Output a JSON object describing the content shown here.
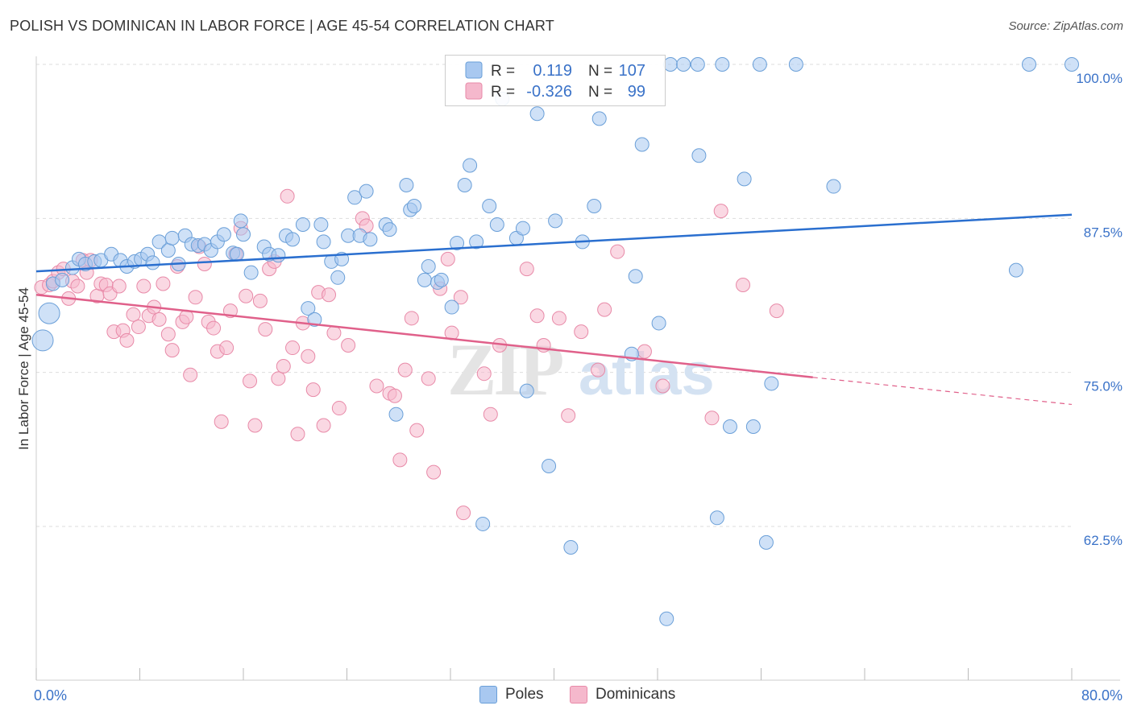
{
  "title": "POLISH VS DOMINICAN IN LABOR FORCE | AGE 45-54 CORRELATION CHART",
  "source": "Source: ZipAtlas.com",
  "chart_data": {
    "type": "scatter",
    "ylabel": "In Labor Force | Age 45-54",
    "xlim": [
      0,
      80
    ],
    "ylim": [
      50,
      101
    ],
    "x_tick_labels": {
      "left": "0.0%",
      "right": "80.0%"
    },
    "y_ticks": [
      {
        "value": 100,
        "label": "100.0%"
      },
      {
        "value": 87.5,
        "label": "87.5%"
      },
      {
        "value": 75,
        "label": "75.0%"
      },
      {
        "value": 62.5,
        "label": "62.5%"
      }
    ],
    "grid": "horizontal dashed",
    "legend_position": "top-center",
    "colors": {
      "poles_fill": "#a8c8f0",
      "poles_stroke": "#6a9fd8",
      "poles_line": "#2a6fcf",
      "dominicans_fill": "#f5b8cc",
      "dominicans_stroke": "#e88aa8",
      "dominicans_line": "#e0608a",
      "tick_label": "#3a72c8"
    },
    "legend": [
      {
        "r_label": "R =",
        "r_value": "0.119",
        "n_label": "N =",
        "n_value": "107"
      },
      {
        "r_label": "R =",
        "r_value": "-0.326",
        "n_label": "N =",
        "n_value": "99"
      }
    ],
    "series": [
      {
        "name": "Poles",
        "trend": {
          "x0": 0,
          "y0": 83.2,
          "x1": 80,
          "y1": 87.8
        },
        "points": [
          [
            0.5,
            77.6
          ],
          [
            1,
            79.8
          ],
          [
            1.3,
            82.2
          ],
          [
            2,
            82.5
          ],
          [
            2.8,
            83.5
          ],
          [
            3.3,
            84.2
          ],
          [
            3.8,
            83.8
          ],
          [
            4.5,
            84.0
          ],
          [
            5,
            84.1
          ],
          [
            5.8,
            84.6
          ],
          [
            6.5,
            84.1
          ],
          [
            7,
            83.6
          ],
          [
            7.6,
            84.0
          ],
          [
            8.1,
            84.2
          ],
          [
            8.6,
            84.6
          ],
          [
            9,
            83.9
          ],
          [
            9.5,
            85.6
          ],
          [
            10.2,
            84.9
          ],
          [
            10.5,
            85.9
          ],
          [
            11,
            83.8
          ],
          [
            11.5,
            86.1
          ],
          [
            12,
            85.4
          ],
          [
            12.5,
            85.3
          ],
          [
            13,
            85.4
          ],
          [
            13.5,
            84.9
          ],
          [
            14,
            85.6
          ],
          [
            14.5,
            86.2
          ],
          [
            15.2,
            84.7
          ],
          [
            15.5,
            84.6
          ],
          [
            15.8,
            87.3
          ],
          [
            16,
            86.2
          ],
          [
            16.6,
            83.1
          ],
          [
            17.6,
            85.2
          ],
          [
            18,
            84.6
          ],
          [
            18.7,
            84.5
          ],
          [
            19.3,
            86.1
          ],
          [
            19.8,
            85.8
          ],
          [
            20.6,
            87.0
          ],
          [
            21,
            80.2
          ],
          [
            21.5,
            79.3
          ],
          [
            22,
            87.0
          ],
          [
            22.2,
            85.6
          ],
          [
            22.8,
            84.0
          ],
          [
            23.3,
            82.7
          ],
          [
            23.6,
            84.2
          ],
          [
            24.1,
            86.1
          ],
          [
            24.6,
            89.2
          ],
          [
            25,
            86.1
          ],
          [
            25.5,
            89.7
          ],
          [
            25.8,
            85.8
          ],
          [
            27,
            87.0
          ],
          [
            27.3,
            86.6
          ],
          [
            27.8,
            71.6
          ],
          [
            28.6,
            90.2
          ],
          [
            28.9,
            88.2
          ],
          [
            29.2,
            88.5
          ],
          [
            30,
            82.5
          ],
          [
            30.3,
            83.6
          ],
          [
            31,
            82.3
          ],
          [
            31.3,
            82.5
          ],
          [
            32.1,
            80.3
          ],
          [
            32.5,
            85.5
          ],
          [
            33.1,
            90.2
          ],
          [
            33.5,
            91.8
          ],
          [
            34.0,
            85.6
          ],
          [
            34.5,
            62.7
          ],
          [
            35,
            88.5
          ],
          [
            35.6,
            87.0
          ],
          [
            36,
            97.2
          ],
          [
            37.1,
            85.9
          ],
          [
            37.6,
            86.7
          ],
          [
            37.9,
            73.5
          ],
          [
            38.7,
            96.0
          ],
          [
            39.6,
            67.4
          ],
          [
            40.1,
            87.3
          ],
          [
            41.3,
            60.8
          ],
          [
            42.2,
            85.6
          ],
          [
            43.1,
            88.5
          ],
          [
            43.5,
            95.6
          ],
          [
            46,
            76.5
          ],
          [
            46.3,
            82.8
          ],
          [
            46.8,
            93.5
          ],
          [
            48.1,
            79.0
          ],
          [
            48.7,
            55.0
          ],
          [
            49,
            100
          ],
          [
            50,
            100
          ],
          [
            51.1,
            100
          ],
          [
            51.2,
            92.6
          ],
          [
            52.6,
            63.2
          ],
          [
            53,
            100
          ],
          [
            53.6,
            70.6
          ],
          [
            54.7,
            90.7
          ],
          [
            55.4,
            70.6
          ],
          [
            55.9,
            100
          ],
          [
            56.4,
            61.2
          ],
          [
            56.8,
            74.1
          ],
          [
            58.7,
            100
          ],
          [
            61.6,
            90.1
          ],
          [
            75.7,
            83.3
          ],
          [
            76.7,
            100
          ],
          [
            80,
            100
          ]
        ]
      },
      {
        "name": "Dominicans",
        "trend": {
          "x0": 0,
          "y0": 81.3,
          "x1": 60,
          "y1": 74.6
        },
        "dashed_extension": {
          "x0": 60,
          "y0": 74.6,
          "x1": 80,
          "y1": 72.4
        },
        "points": [
          [
            0.4,
            81.9
          ],
          [
            1,
            82.1
          ],
          [
            1.3,
            82.4
          ],
          [
            1.7,
            83.1
          ],
          [
            2.1,
            83.4
          ],
          [
            2.5,
            81.0
          ],
          [
            2.8,
            82.4
          ],
          [
            3.2,
            82.0
          ],
          [
            3.6,
            84.1
          ],
          [
            3.9,
            83.1
          ],
          [
            4.2,
            84.1
          ],
          [
            4.7,
            81.2
          ],
          [
            5,
            82.2
          ],
          [
            5.4,
            82.1
          ],
          [
            5.7,
            81.4
          ],
          [
            6,
            78.3
          ],
          [
            6.4,
            82.0
          ],
          [
            6.7,
            78.4
          ],
          [
            7,
            77.6
          ],
          [
            7.5,
            79.7
          ],
          [
            7.9,
            78.7
          ],
          [
            8.3,
            82.0
          ],
          [
            8.7,
            79.6
          ],
          [
            9.1,
            80.3
          ],
          [
            9.5,
            79.3
          ],
          [
            9.8,
            82.2
          ],
          [
            10.2,
            78.1
          ],
          [
            10.5,
            76.8
          ],
          [
            10.9,
            83.6
          ],
          [
            11.3,
            79.1
          ],
          [
            11.6,
            79.5
          ],
          [
            11.9,
            74.8
          ],
          [
            12.3,
            81.1
          ],
          [
            12.6,
            85.2
          ],
          [
            13,
            83.8
          ],
          [
            13.3,
            79.1
          ],
          [
            13.7,
            78.6
          ],
          [
            14,
            76.7
          ],
          [
            14.3,
            71.0
          ],
          [
            14.7,
            77.0
          ],
          [
            15,
            80.0
          ],
          [
            15.4,
            84.6
          ],
          [
            15.8,
            86.7
          ],
          [
            16.2,
            81.2
          ],
          [
            16.5,
            74.3
          ],
          [
            16.9,
            70.7
          ],
          [
            17.3,
            80.8
          ],
          [
            17.7,
            78.5
          ],
          [
            18,
            83.4
          ],
          [
            18.4,
            84.0
          ],
          [
            18.7,
            74.5
          ],
          [
            19.1,
            75.5
          ],
          [
            19.4,
            89.3
          ],
          [
            19.8,
            77.0
          ],
          [
            20.2,
            70.0
          ],
          [
            20.6,
            79.0
          ],
          [
            21,
            76.3
          ],
          [
            21.4,
            73.6
          ],
          [
            21.8,
            81.5
          ],
          [
            22.2,
            70.7
          ],
          [
            22.6,
            81.3
          ],
          [
            23,
            78.2
          ],
          [
            23.4,
            72.1
          ],
          [
            24.1,
            77.2
          ],
          [
            25.2,
            87.5
          ],
          [
            25.5,
            86.9
          ],
          [
            26.3,
            73.9
          ],
          [
            27.3,
            73.3
          ],
          [
            27.7,
            73.1
          ],
          [
            28.1,
            67.9
          ],
          [
            28.5,
            75.2
          ],
          [
            29,
            79.4
          ],
          [
            29.4,
            70.3
          ],
          [
            30.3,
            74.5
          ],
          [
            30.7,
            66.9
          ],
          [
            31.2,
            81.8
          ],
          [
            31.8,
            84.2
          ],
          [
            32.1,
            78.2
          ],
          [
            32.8,
            81.1
          ],
          [
            33,
            63.6
          ],
          [
            34.6,
            74.9
          ],
          [
            35.1,
            71.6
          ],
          [
            35.8,
            77.2
          ],
          [
            37.9,
            83.4
          ],
          [
            38.7,
            79.6
          ],
          [
            39.2,
            77.2
          ],
          [
            40.4,
            79.4
          ],
          [
            41.1,
            71.5
          ],
          [
            42.1,
            78.3
          ],
          [
            43.4,
            75.2
          ],
          [
            43.9,
            80.1
          ],
          [
            44.9,
            84.8
          ],
          [
            47,
            76.7
          ],
          [
            48.4,
            73.9
          ],
          [
            52.2,
            71.3
          ],
          [
            52.9,
            88.1
          ],
          [
            54.6,
            82.1
          ],
          [
            57.2,
            80.0
          ]
        ]
      }
    ]
  },
  "bottom_legend": [
    {
      "label": "Poles"
    },
    {
      "label": "Dominicans"
    }
  ],
  "watermark": "ZIPatlas"
}
